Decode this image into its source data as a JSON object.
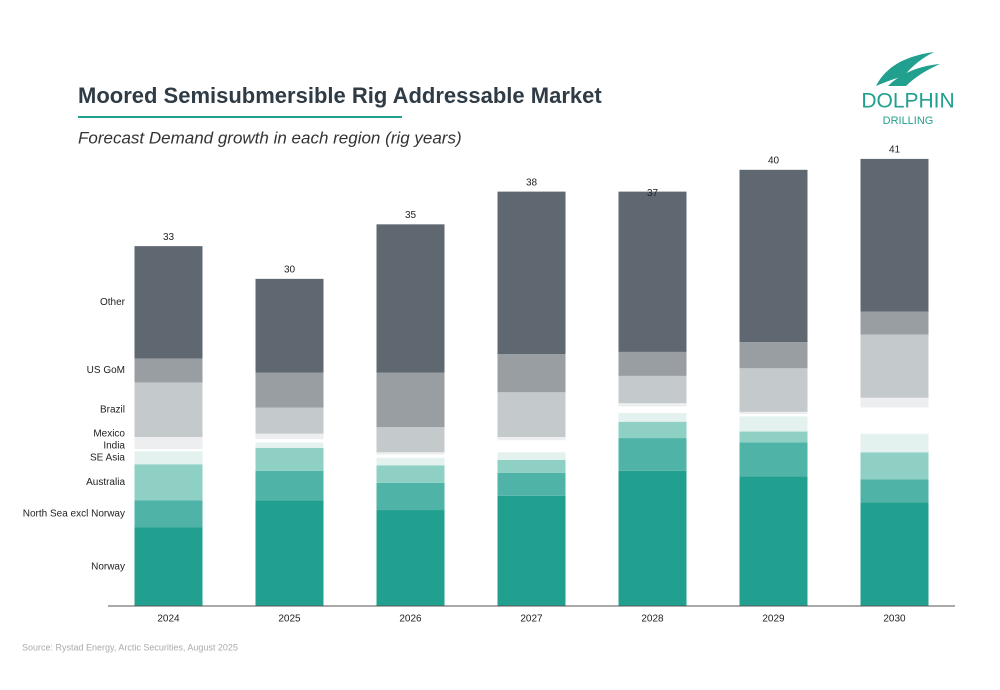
{
  "logo": {
    "name": "DOLPHIN",
    "sub": "DRILLING"
  },
  "chart_data": {
    "type": "stacked_bar",
    "title": "Moored Semisubmersible Rig Addressable Market",
    "subtitle": "Forecast Demand growth in each region (rig years)",
    "source": "Source: Rystad Energy, Arctic Securities, August 2025",
    "categories": [
      "2024",
      "2025",
      "2026",
      "2027",
      "2028",
      "2029",
      "2030"
    ],
    "totals": [
      33,
      30,
      35,
      38,
      37,
      40,
      41
    ],
    "ylim": [
      0,
      42
    ],
    "series": [
      {
        "name": "Norway",
        "color": "#21a08f",
        "values": [
          7.2,
          9.7,
          8.8,
          10.1,
          12.4,
          11.9,
          9.5
        ]
      },
      {
        "name": "North Sea excl Norway",
        "color": "#4fb3a8",
        "values": [
          2.5,
          2.7,
          2.5,
          2.1,
          3.0,
          3.1,
          2.1
        ]
      },
      {
        "name": "Australia",
        "color": "#8fd0c4",
        "values": [
          3.3,
          2.1,
          1.6,
          1.2,
          1.5,
          1.0,
          2.5
        ]
      },
      {
        "name": "SE Asia",
        "color": "#e3f2ef",
        "values": [
          1.2,
          0.5,
          0.7,
          0.7,
          0.8,
          1.4,
          1.7
        ]
      },
      {
        "name": "India",
        "color": "#ffffff",
        "values": [
          0.2,
          0.3,
          0.3,
          1.1,
          0.6,
          0.2,
          2.4
        ]
      },
      {
        "name": "Mexico",
        "color": "#eceeef",
        "values": [
          1.1,
          0.5,
          0.2,
          0.3,
          0.3,
          0.2,
          0.9
        ]
      },
      {
        "name": "Brazil",
        "color": "#c4c9cc",
        "values": [
          5.0,
          2.4,
          2.3,
          4.1,
          2.5,
          4.0,
          5.8
        ]
      },
      {
        "name": "US GoM",
        "color": "#999ea3",
        "values": [
          2.2,
          3.2,
          5.0,
          3.5,
          2.2,
          2.4,
          2.1
        ]
      },
      {
        "name": "Other",
        "color": "#5f6870",
        "values": [
          10.3,
          8.6,
          13.6,
          14.9,
          14.7,
          15.8,
          14.0
        ]
      }
    ]
  }
}
